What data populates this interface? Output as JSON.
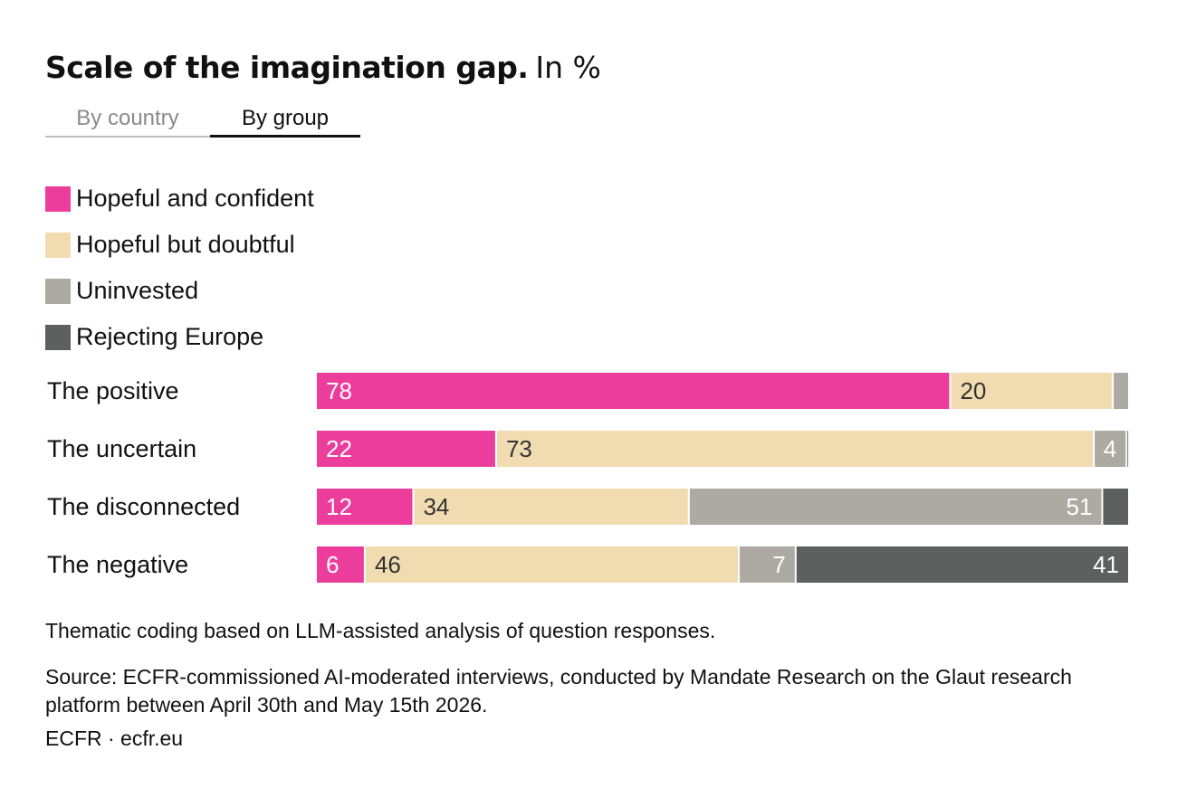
{
  "header": {
    "title": "Scale of the imagination gap.",
    "unit": "In %"
  },
  "tabs": [
    {
      "label": "By country",
      "active": false
    },
    {
      "label": "By group",
      "active": true
    }
  ],
  "chart_data": {
    "type": "bar",
    "orientation": "horizontal",
    "stacked": true,
    "categories": [
      "The positive",
      "The uncertain",
      "The disconnected",
      "The negative"
    ],
    "series": [
      {
        "name": "Hopeful and confident",
        "color": "#ec3d9d",
        "values": [
          78,
          22,
          12,
          6
        ]
      },
      {
        "name": "Hopeful but doubtful",
        "color": "#f0dcb0",
        "values": [
          20,
          73,
          34,
          46
        ]
      },
      {
        "name": "Uninvested",
        "color": "#adaaa3",
        "values": [
          2,
          4,
          51,
          7
        ]
      },
      {
        "name": "Rejecting Europe",
        "color": "#5c605e",
        "values": [
          0,
          0.3,
          3.3,
          41
        ]
      }
    ],
    "data_labels": [
      [
        "78",
        "20",
        "",
        ""
      ],
      [
        "22",
        "73",
        "4",
        ""
      ],
      [
        "12",
        "34",
        "51",
        ""
      ],
      [
        "6",
        "46",
        "7",
        "41"
      ]
    ],
    "legend_placement": "top-left",
    "grid": false
  },
  "notes": {
    "method": "Thematic coding based on LLM-assisted analysis of question responses.",
    "source": "Source: ECFR-commissioned AI-moderated interviews, conducted by Mandate Research on the Glaut research platform between April 30th and May 15th 2026.",
    "credit": "ECFR · ecfr.eu"
  }
}
